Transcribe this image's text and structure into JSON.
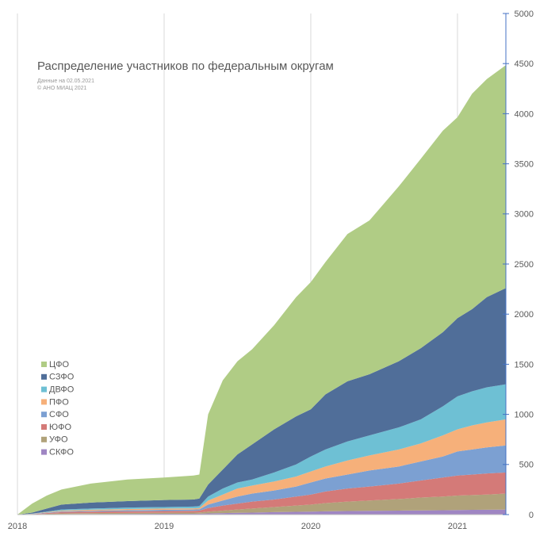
{
  "chart_data": {
    "type": "stacked_area",
    "title": "Распределение участников по федеральным округам",
    "subtitle": [
      "Данные на 02.05.2021",
      "© АНО МИАЦ 2021"
    ],
    "x": [
      2018,
      2018.1,
      2018.2,
      2018.3,
      2018.5,
      2018.75,
      2019,
      2019.2,
      2019.24,
      2019.3,
      2019.4,
      2019.5,
      2019.6,
      2019.75,
      2019.9,
      2020,
      2020.1,
      2020.25,
      2020.4,
      2020.6,
      2020.75,
      2020.9,
      2021,
      2021.1,
      2021.2,
      2021.33
    ],
    "xlim": [
      2018,
      2021.33
    ],
    "xticks": [
      2018,
      2019,
      2020,
      2021
    ],
    "ylim": [
      0,
      5000
    ],
    "yticks": [
      0,
      500,
      1000,
      1500,
      2000,
      2500,
      3000,
      3500,
      4000,
      4500,
      5000
    ],
    "grid": true,
    "legend": "left",
    "series": [
      {
        "name": "СКФО",
        "color": "#9f86c3",
        "values": [
          0,
          1,
          3,
          5,
          6,
          7,
          8,
          8,
          9,
          12,
          15,
          18,
          20,
          25,
          28,
          30,
          33,
          36,
          38,
          40,
          42,
          44,
          46,
          47,
          48,
          50
        ]
      },
      {
        "name": "УФО",
        "color": "#b0a27a",
        "values": [
          0,
          1,
          5,
          7,
          9,
          10,
          11,
          12,
          12,
          18,
          25,
          32,
          40,
          50,
          62,
          70,
          82,
          94,
          102,
          115,
          128,
          136,
          144,
          148,
          152,
          160
        ]
      },
      {
        "name": "ЮФО",
        "color": "#d47a78",
        "values": [
          0,
          2,
          7,
          13,
          15,
          16,
          17,
          18,
          19,
          35,
          50,
          60,
          70,
          75,
          90,
          100,
          115,
          130,
          140,
          155,
          170,
          190,
          200,
          205,
          210,
          210
        ]
      },
      {
        "name": "СФО",
        "color": "#7ca0d2",
        "values": [
          0,
          2,
          5,
          7,
          8,
          10,
          11,
          12,
          12,
          35,
          50,
          70,
          80,
          90,
          100,
          120,
          130,
          140,
          160,
          170,
          190,
          210,
          240,
          250,
          260,
          270
        ]
      },
      {
        "name": "ПФО",
        "color": "#f6b07a",
        "values": [
          0,
          2,
          5,
          8,
          10,
          12,
          13,
          12,
          13,
          40,
          60,
          80,
          80,
          90,
          100,
          110,
          120,
          140,
          150,
          170,
          180,
          210,
          220,
          240,
          250,
          260
        ]
      },
      {
        "name": "ДВФО",
        "color": "#6ec0d4",
        "values": [
          0,
          2,
          5,
          10,
          12,
          15,
          15,
          18,
          20,
          40,
          60,
          60,
          60,
          90,
          120,
          150,
          170,
          190,
          200,
          220,
          240,
          290,
          330,
          340,
          350,
          350
        ]
      },
      {
        "name": "СЗФО",
        "color": "#506e99",
        "values": [
          0,
          10,
          30,
          50,
          60,
          65,
          70,
          70,
          75,
          120,
          190,
          280,
          350,
          430,
          480,
          470,
          550,
          600,
          610,
          660,
          710,
          740,
          780,
          820,
          900,
          960
        ]
      },
      {
        "name": "ЦФО",
        "color": "#b0cc85",
        "values": [
          0,
          90,
          130,
          150,
          190,
          215,
          225,
          240,
          240,
          700,
          890,
          930,
          950,
          1040,
          1190,
          1270,
          1320,
          1470,
          1535,
          1745,
          1890,
          2010,
          2005,
          2150,
          2175,
          2225
        ]
      }
    ]
  }
}
